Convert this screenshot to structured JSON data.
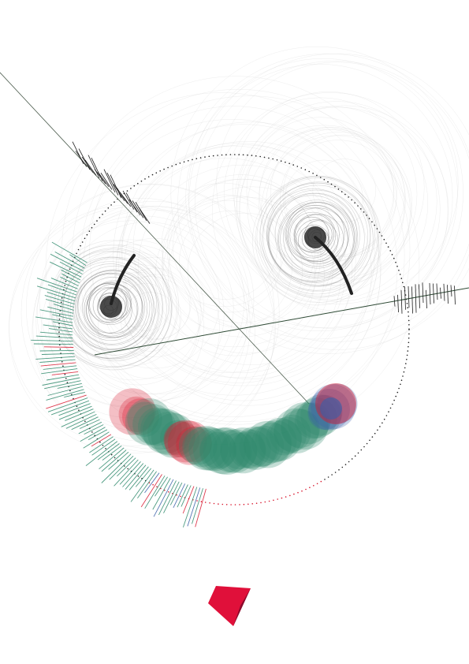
{
  "artwork": {
    "elements": [
      "dotted-face-circle",
      "left-eye-swirl",
      "right-eye-swirl",
      "smile-brush-stroke",
      "crossing-lines",
      "red-logo-mark"
    ],
    "colors": {
      "background": "#ffffff",
      "ink": "#1f1f1f",
      "green": "#2f8a6c",
      "red": "#d8182f",
      "blue": "#3b5fa8",
      "logo_red": "#e0103a",
      "logo_dark": "#8a0a2c",
      "faint": "#cccccc"
    }
  }
}
